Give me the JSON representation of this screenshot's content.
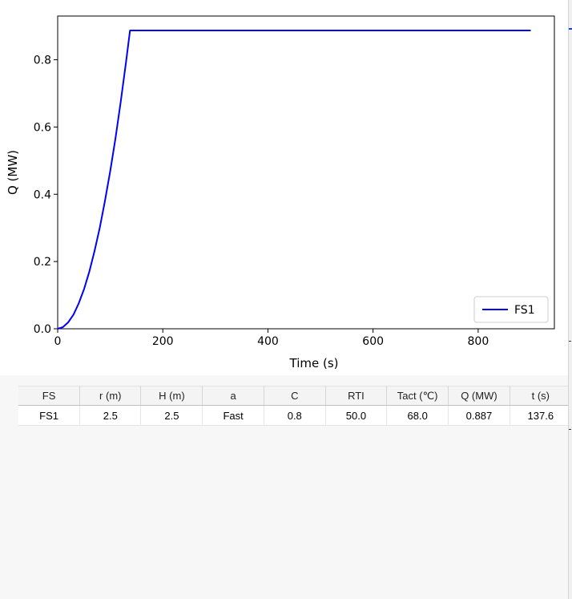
{
  "chart_data": {
    "type": "line",
    "xlabel": "Time (s)",
    "ylabel": "Q (MW)",
    "xlim": [
      0,
      945
    ],
    "ylim": [
      0,
      0.93
    ],
    "xticks": [
      0,
      200,
      400,
      600,
      800
    ],
    "xtick_labels": [
      "0",
      "200",
      "400",
      "600",
      "800"
    ],
    "yticks": [
      0,
      0.2,
      0.4,
      0.6,
      0.8
    ],
    "ytick_labels": [
      "0.0",
      "0.2",
      "0.4",
      "0.6",
      "0.8"
    ],
    "grid": false,
    "legend": "bottom-right",
    "series": [
      {
        "name": "FS1",
        "color": "#0000ff",
        "x": [
          0,
          10,
          20,
          30,
          40,
          50,
          60,
          70,
          80,
          90,
          100,
          110,
          120,
          130,
          137.6,
          200,
          300,
          400,
          500,
          600,
          700,
          800,
          900
        ],
        "y": [
          0,
          0.005,
          0.019,
          0.042,
          0.075,
          0.117,
          0.169,
          0.23,
          0.3,
          0.38,
          0.469,
          0.567,
          0.675,
          0.793,
          0.887,
          0.887,
          0.887,
          0.887,
          0.887,
          0.887,
          0.887,
          0.887,
          0.887
        ]
      }
    ]
  },
  "table": {
    "headers": [
      "FS",
      "r (m)",
      "H (m)",
      "a",
      "C",
      "RTI",
      "Tact (℃)",
      "Q (MW)",
      "t (s)"
    ],
    "rows": [
      [
        "FS1",
        "2.5",
        "2.5",
        "Fast",
        "0.8",
        "50.0",
        "68.0",
        "0.887",
        "137.6"
      ]
    ]
  },
  "colors": {
    "series_line": "#0000ff",
    "fs_link": "#1a28d6",
    "panel_background": "#f7f7f7"
  }
}
